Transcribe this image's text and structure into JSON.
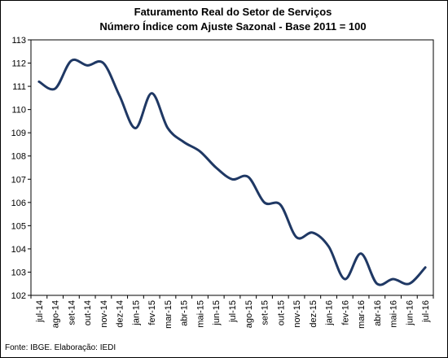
{
  "chart_data": {
    "type": "line",
    "title": "Faturamento Real do Setor de Serviços",
    "subtitle": "Número Índice com Ajuste Sazonal - Base 2011 = 100",
    "source": "Fonte: IBGE. Elaboração: IEDI",
    "xlabel": "",
    "ylabel": "",
    "ylim": [
      102,
      113
    ],
    "yticks": [
      102,
      103,
      104,
      105,
      106,
      107,
      108,
      109,
      110,
      111,
      112,
      113
    ],
    "grid": false,
    "legend": "none",
    "colors": {
      "line": "#1f3864",
      "axis": "#000000",
      "frame": "#000000"
    },
    "x": [
      "jul-14",
      "ago-14",
      "set-14",
      "out-14",
      "nov-14",
      "dez-14",
      "jan-15",
      "fev-15",
      "mar-15",
      "abr-15",
      "mai-15",
      "jun-15",
      "jul-15",
      "ago-15",
      "set-15",
      "out-15",
      "nov-15",
      "dez-15",
      "jan-16",
      "fev-16",
      "mar-16",
      "abr-16",
      "mai-16",
      "jun-16",
      "jul-16"
    ],
    "series": [
      {
        "values": [
          111.2,
          110.9,
          112.1,
          111.9,
          112.0,
          110.6,
          109.2,
          110.7,
          109.2,
          108.6,
          108.2,
          107.5,
          107.0,
          107.1,
          106.0,
          105.9,
          104.5,
          104.7,
          104.1,
          102.7,
          103.8,
          102.5,
          102.7,
          102.5,
          103.2
        ]
      }
    ]
  }
}
